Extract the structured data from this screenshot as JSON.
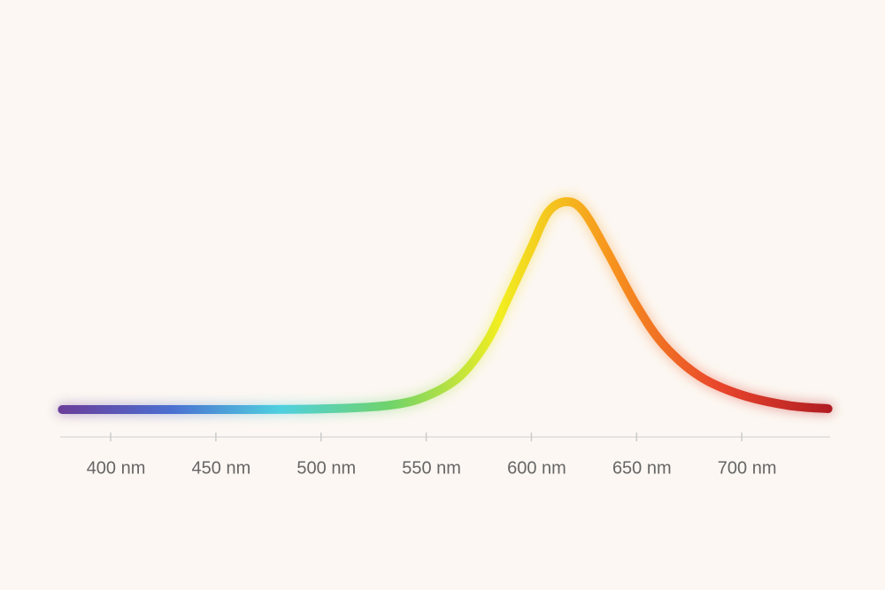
{
  "chart_data": {
    "type": "line",
    "x": [
      377,
      400,
      450,
      500,
      532,
      550,
      566,
      579,
      589,
      600,
      608,
      617,
      625,
      636,
      650,
      663,
      680,
      700,
      722,
      741
    ],
    "values": [
      0,
      0,
      0,
      0.003,
      0.02,
      0.064,
      0.16,
      0.33,
      0.54,
      0.78,
      0.95,
      1,
      0.95,
      0.76,
      0.5,
      0.31,
      0.16,
      0.07,
      0.02,
      0.004
    ],
    "colors": [
      "#6a3d9a",
      "#4b6fd0",
      "#4fd0e0",
      "#6fd36a",
      "#f2ee20",
      "#f7941d",
      "#e8452c",
      "#b01c22"
    ],
    "xlim": [
      376,
      742
    ],
    "ylim": [
      0,
      1
    ],
    "xticks": [
      {
        "value": 400,
        "label": "400 nm"
      },
      {
        "value": 450,
        "label": "450 nm"
      },
      {
        "value": 500,
        "label": "500 nm"
      },
      {
        "value": 550,
        "label": "550 nm"
      },
      {
        "value": 600,
        "label": "600 nm"
      },
      {
        "value": 650,
        "label": "650 nm"
      },
      {
        "value": 700,
        "label": "700 nm"
      }
    ]
  }
}
